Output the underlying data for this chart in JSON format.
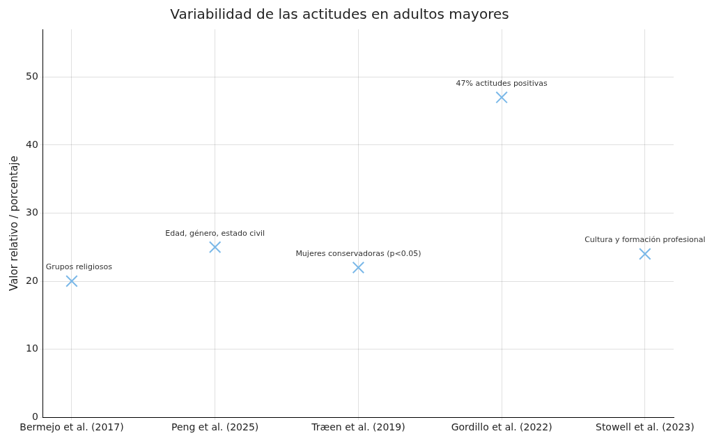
{
  "chart_data": {
    "type": "scatter",
    "title": "Variabilidad de las actitudes en adultos mayores",
    "ylabel": "Valor relativo / porcentaje",
    "categories": [
      "Bermejo et al. (2017)",
      "Peng et al. (2025)",
      "Træen et al. (2019)",
      "Gordillo et al. (2022)",
      "Stowell et al. (2023)"
    ],
    "series": [
      {
        "color": "#7ab8e8",
        "values": [
          20,
          25,
          22,
          47,
          24
        ]
      }
    ],
    "annotations": [
      {
        "text": "Grupos religiosos",
        "x": "Bermejo et al. (2017)",
        "y": 20
      },
      {
        "text": "Edad, género, estado civil",
        "x": "Peng et al. (2025)",
        "y": 25
      },
      {
        "text": "Mujeres conservadoras (p<0.05)",
        "x": "Træen et al. (2019)",
        "y": 22
      },
      {
        "text": "47% actitudes positivas",
        "x": "Gordillo et al. (2022)",
        "y": 47
      },
      {
        "text": "Cultura y formación profesional",
        "x": "Stowell et al. (2023)",
        "y": 24
      }
    ],
    "ylim": [
      0,
      57
    ],
    "yticks": [
      0,
      10,
      20,
      30,
      40,
      50
    ],
    "grid": true,
    "marker": "cross",
    "legend": false
  }
}
